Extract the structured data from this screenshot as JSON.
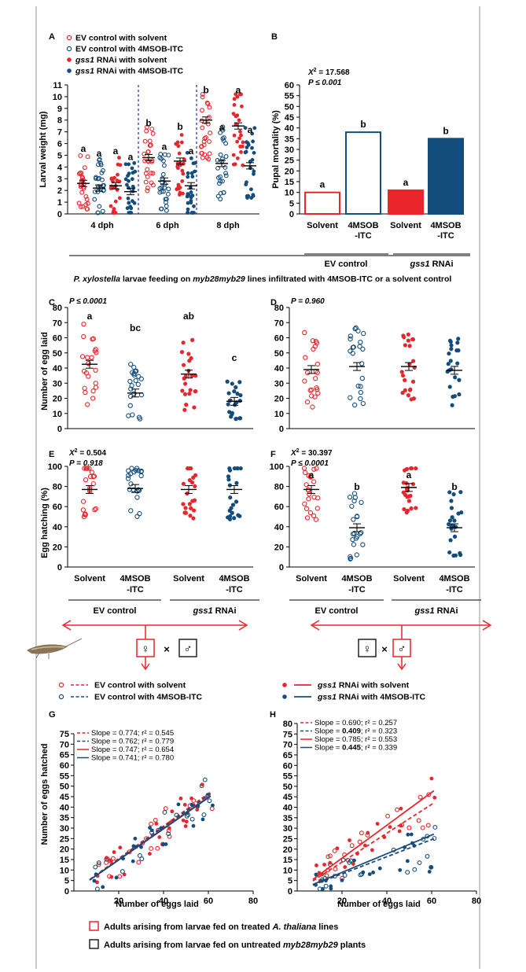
{
  "colors": {
    "red": "#e8262b",
    "blue": "#134d7c",
    "dblue": "#1b4b7c",
    "gray": "#333333"
  },
  "top_legend": [
    {
      "label": "EV control with solvent",
      "marker": "open",
      "color": "#e8262b"
    },
    {
      "label": "EV control with 4MSOB-ITC",
      "marker": "open",
      "color": "#134d7c"
    },
    {
      "label_i": "gss1",
      "label_r": " RNAi with solvent",
      "marker": "filled",
      "color": "#e8262b"
    },
    {
      "label_i": "gss1",
      "label_r": " RNAi with 4MSOB-ITC",
      "marker": "filled",
      "color": "#134d7c"
    }
  ],
  "panel_A": {
    "letter": "A",
    "ylabel": "Larval weight (mg)",
    "yticks": [
      "0",
      "1",
      "2",
      "3",
      "4",
      "5",
      "6",
      "7",
      "8",
      "9",
      "10",
      "11"
    ],
    "groups": [
      "4 dph",
      "6 dph",
      "8 dph"
    ],
    "chart_data": {
      "type": "scatter",
      "x_groups": [
        "4 dph",
        "6 dph",
        "8 dph"
      ],
      "ylim": [
        0,
        11
      ],
      "series": [
        {
          "name": "EV control with solvent",
          "means": [
            2.6,
            4.8,
            8.0
          ],
          "letters": [
            "a",
            "b",
            "b"
          ]
        },
        {
          "name": "EV control with 4MSOB-ITC",
          "means": [
            2.2,
            2.8,
            4.3
          ],
          "letters": [
            "a",
            "a",
            "a"
          ]
        },
        {
          "name": "gss1 RNAi with solvent",
          "means": [
            2.4,
            4.5,
            7.5
          ],
          "letters": [
            "a",
            "b",
            "a"
          ]
        },
        {
          "name": "gss1 RNAi with 4MSOB-ITC",
          "means": [
            1.9,
            2.4,
            4.1
          ],
          "letters": [
            "a",
            "a",
            "a"
          ]
        }
      ]
    }
  },
  "panel_B": {
    "letter": "B",
    "stat1": "X",
    "stat1b": "2",
    "stat1c": " = 17.568",
    "stat2": "P ≤ 0.001",
    "ylabel": "Pupal mortality (%)",
    "yticks": [
      "0",
      "5",
      "10",
      "15",
      "20",
      "25",
      "30",
      "35",
      "40",
      "45",
      "50",
      "55",
      "60"
    ],
    "xlabels": [
      "Solvent",
      "4MSOB\n-ITC",
      "Solvent",
      "4MSOB\n-ITC"
    ],
    "group1": "EV control",
    "group2_i": "gss1",
    "group2_r": " RNAi",
    "chart_data": {
      "type": "bar",
      "categories": [
        "EV Solvent",
        "EV 4MSOB-ITC",
        "gss1 Solvent",
        "gss1 4MSOB-ITC"
      ],
      "values": [
        10,
        38,
        11,
        35
      ],
      "letters": [
        "a",
        "b",
        "a",
        "b"
      ],
      "ylim": [
        0,
        60
      ]
    }
  },
  "caption": {
    "p1_i": "P. xylostella",
    "p2": " larvae feeding on ",
    "p3_i": "myb28myb29",
    "p4": " lines infiltrated with 4MSOB-ITC or a solvent control"
  },
  "panel_C": {
    "letter": "C",
    "stat": "P ≤ 0.0001",
    "ylabel": "Number of egg laid",
    "yticks": [
      "0",
      "10",
      "20",
      "30",
      "40",
      "50",
      "60",
      "70",
      "80"
    ],
    "chart_data": {
      "type": "scatter",
      "ylim": [
        0,
        80
      ],
      "means": [
        42.5,
        23.5,
        36,
        18
      ],
      "letters": [
        "a",
        "bc",
        "ab",
        "c"
      ]
    }
  },
  "panel_D": {
    "letter": "D",
    "stat": "P = 0.960",
    "yticks": [
      "0",
      "10",
      "20",
      "30",
      "40",
      "50",
      "60",
      "70",
      "80"
    ],
    "chart_data": {
      "type": "scatter",
      "ylim": [
        0,
        80
      ],
      "means": [
        39,
        41,
        41,
        38.5
      ],
      "letters": [
        "",
        "",
        "",
        ""
      ]
    }
  },
  "panel_E": {
    "letter": "E",
    "stat1": "X",
    "stat1b": "2",
    "stat1c": " = 0.504",
    "stat2": "P = 0.918",
    "ylabel": "Egg hatching (%)",
    "yticks": [
      "0",
      "20",
      "40",
      "60",
      "80",
      "100"
    ],
    "chart_data": {
      "type": "scatter",
      "ylim": [
        0,
        100
      ],
      "means": [
        77,
        78,
        77,
        77
      ],
      "letters": [
        "",
        "",
        "",
        ""
      ]
    }
  },
  "panel_F": {
    "letter": "F",
    "stat1": "X",
    "stat1b": "2",
    "stat1c": " = 30.397",
    "stat2": "P ≤ 0.0001",
    "yticks": [
      "0",
      "20",
      "40",
      "60",
      "80",
      "100"
    ],
    "chart_data": {
      "type": "scatter",
      "ylim": [
        0,
        100
      ],
      "means": [
        77,
        39,
        79,
        39
      ],
      "letters": [
        "a",
        "b",
        "a",
        "b"
      ]
    }
  },
  "ef_xlabels": [
    "Solvent",
    "4MSOB\n-ITC",
    "Solvent",
    "4MSOB\n-ITC"
  ],
  "ef_group1": "EV control",
  "ef_group2_i": "gss1",
  "ef_group2_r": " RNAi",
  "cross": {
    "female": "♀",
    "times": "×",
    "male": "♂"
  },
  "mid_legend": [
    {
      "label": "EV control with solvent",
      "line": "dashed",
      "marker": "open",
      "color": "#e8262b"
    },
    {
      "label": "EV control with 4MSOB-ITC",
      "line": "dashed",
      "marker": "open",
      "color": "#1b4b7c"
    },
    {
      "label_i": "gss1",
      "label_r": " RNAi with solvent",
      "line": "solid",
      "marker": "filled",
      "color": "#e8262b"
    },
    {
      "label_i": "gss1",
      "label_r": " RNAi with 4MSOB-ITC",
      "line": "solid",
      "marker": "filled",
      "color": "#1b4b7c"
    }
  ],
  "panel_G": {
    "letter": "G",
    "xlabel": "Number of eggs laid",
    "ylabel": "Number of eggs hatched",
    "xticks": [
      "20",
      "40",
      "60",
      "80"
    ],
    "yticks": [
      "0",
      "5",
      "10",
      "15",
      "20",
      "25",
      "30",
      "35",
      "40",
      "45",
      "50",
      "55",
      "60",
      "65",
      "70",
      "75"
    ],
    "regressions": [
      {
        "text": "Slope = 0.774; r² = 0.545",
        "bold": false
      },
      {
        "text": "Slope = 0.762; r² = 0.779",
        "bold": false
      },
      {
        "text": "Slope = 0.747; r² = 0.654",
        "bold": false
      },
      {
        "text": "Slope = 0.741; r² = 0.780",
        "bold": false
      }
    ],
    "chart_data": {
      "type": "scatter",
      "xlim": [
        0,
        80
      ],
      "ylim": [
        0,
        75
      ],
      "slopes": [
        0.774,
        0.762,
        0.747,
        0.741
      ],
      "r2": [
        0.545,
        0.779,
        0.654,
        0.78
      ]
    }
  },
  "panel_H": {
    "letter": "H",
    "xlabel": "Number of eggs laid",
    "xticks": [
      "20",
      "40",
      "60",
      "80"
    ],
    "yticks": [
      "0",
      "5",
      "10",
      "15",
      "20",
      "25",
      "30",
      "35",
      "40",
      "45",
      "50",
      "55",
      "60",
      "65",
      "70",
      "75",
      "80"
    ],
    "regressions": [
      {
        "s": "Slope = ",
        "v": "0.690",
        "r": "; r² = 0.257",
        "bold": false
      },
      {
        "s": "Slope = ",
        "v": "0.409",
        "r": "; r² = 0.323",
        "bold": true
      },
      {
        "s": "Slope = ",
        "v": "0.785",
        "r": "; r² = 0.553",
        "bold": false
      },
      {
        "s": "Slope = ",
        "v": "0.445",
        "r": "; r² = 0.339",
        "bold": true
      }
    ],
    "chart_data": {
      "type": "scatter",
      "xlim": [
        0,
        80
      ],
      "ylim": [
        0,
        80
      ],
      "slopes": [
        0.69,
        0.409,
        0.785,
        0.445
      ],
      "r2": [
        0.257,
        0.323,
        0.553,
        0.339
      ]
    }
  },
  "bottom_legend": [
    {
      "t1": "Adults arising from larvae fed on treated ",
      "t2_i": "A. thaliana",
      "t3": " lines",
      "color": "#e8262b"
    },
    {
      "t1": "Adults arising from larvae fed on untreated ",
      "t2_i": "myb28myb29",
      "t3": " plants",
      "color": "#222222"
    }
  ]
}
